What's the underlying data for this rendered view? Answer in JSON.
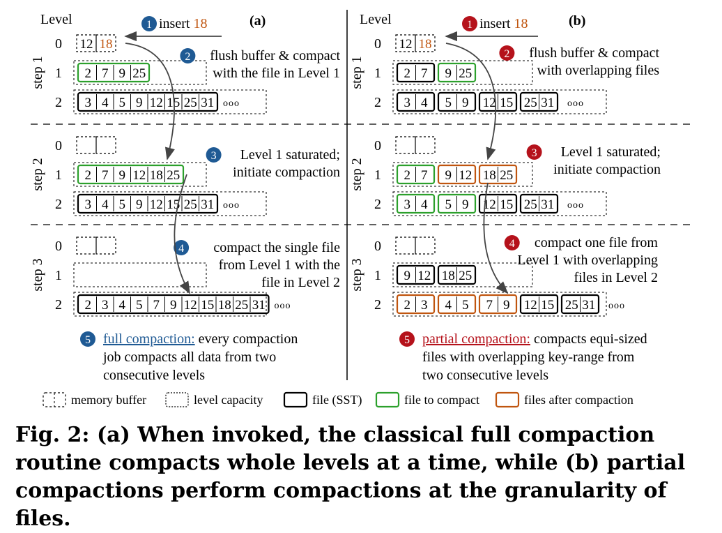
{
  "panels": {
    "a": {
      "label": "(a)",
      "level_heading": "Level",
      "steps": [
        {
          "label": "step 1",
          "rows": [
            {
              "level": "0",
              "buffer": [
                "12",
                "18"
              ],
              "buffer_colors": [
                "#000000",
                "#c0550f"
              ]
            },
            {
              "level": "1",
              "files": [
                {
                  "keys": [
                    "2",
                    "7",
                    "9",
                    "25"
                  ],
                  "kind": "compact"
                }
              ]
            },
            {
              "level": "2",
              "files": [
                {
                  "keys": [
                    "3",
                    "4",
                    "5",
                    "9",
                    "12",
                    "15",
                    "25",
                    "31"
                  ],
                  "kind": "sst"
                }
              ],
              "more": "ooo"
            }
          ]
        },
        {
          "label": "step 2",
          "rows": [
            {
              "level": "0",
              "buffer": [
                "",
                ""
              ],
              "buffer_colors": [
                "#000000",
                "#000000"
              ]
            },
            {
              "level": "1",
              "files": [
                {
                  "keys": [
                    "2",
                    "7",
                    "9",
                    "12",
                    "18",
                    "25"
                  ],
                  "kind": "compact"
                }
              ]
            },
            {
              "level": "2",
              "files": [
                {
                  "keys": [
                    "3",
                    "4",
                    "5",
                    "9",
                    "12",
                    "15",
                    "25",
                    "31"
                  ],
                  "kind": "sst"
                }
              ],
              "more": "ooo"
            }
          ]
        },
        {
          "label": "step 3",
          "rows": [
            {
              "level": "0",
              "buffer": [
                "",
                ""
              ],
              "buffer_colors": [
                "#000000",
                "#000000"
              ]
            },
            {
              "level": "1",
              "files": []
            },
            {
              "level": "2",
              "files": [
                {
                  "keys": [
                    "2",
                    "3",
                    "4",
                    "5",
                    "7",
                    "9",
                    "12",
                    "15",
                    "18",
                    "25",
                    "31"
                  ],
                  "kind": "sst"
                }
              ],
              "more": "ooo"
            }
          ]
        }
      ],
      "notes": [
        {
          "num": "1",
          "lines": [
            "insert 18"
          ]
        },
        {
          "num": "2",
          "lines": [
            "flush buffer & compact",
            "with the file in Level 1"
          ]
        },
        {
          "num": "3",
          "lines": [
            "Level 1 saturated;",
            "initiate compaction"
          ]
        },
        {
          "num": "4",
          "lines": [
            "compact the single file",
            "from Level 1 with the",
            "file in Level 2"
          ]
        }
      ],
      "summary": {
        "num": "5",
        "term": "full compaction:",
        "lines": [
          "every compaction",
          "job compacts all data from two",
          "consecutive levels"
        ]
      }
    },
    "b": {
      "label": "(b)",
      "level_heading": "Level",
      "steps": [
        {
          "label": "step 1",
          "rows": [
            {
              "level": "0",
              "buffer": [
                "12",
                "18"
              ],
              "buffer_colors": [
                "#000000",
                "#c0550f"
              ]
            },
            {
              "level": "1",
              "files": [
                {
                  "keys": [
                    "2",
                    "7"
                  ],
                  "kind": "sst"
                },
                {
                  "keys": [
                    "9",
                    "25"
                  ],
                  "kind": "compact"
                }
              ]
            },
            {
              "level": "2",
              "files": [
                {
                  "keys": [
                    "3",
                    "4"
                  ],
                  "kind": "sst"
                },
                {
                  "keys": [
                    "5",
                    "9"
                  ],
                  "kind": "sst"
                },
                {
                  "keys": [
                    "12",
                    "15"
                  ],
                  "kind": "sst"
                },
                {
                  "keys": [
                    "25",
                    "31"
                  ],
                  "kind": "sst"
                }
              ],
              "more": "ooo"
            }
          ]
        },
        {
          "label": "step 2",
          "rows": [
            {
              "level": "0",
              "buffer": [
                "",
                ""
              ],
              "buffer_colors": [
                "#000000",
                "#000000"
              ]
            },
            {
              "level": "1",
              "files": [
                {
                  "keys": [
                    "2",
                    "7"
                  ],
                  "kind": "compact"
                },
                {
                  "keys": [
                    "9",
                    "12"
                  ],
                  "kind": "after"
                },
                {
                  "keys": [
                    "18",
                    "25"
                  ],
                  "kind": "after"
                }
              ]
            },
            {
              "level": "2",
              "files": [
                {
                  "keys": [
                    "3",
                    "4"
                  ],
                  "kind": "compact"
                },
                {
                  "keys": [
                    "5",
                    "9"
                  ],
                  "kind": "compact"
                },
                {
                  "keys": [
                    "12",
                    "15"
                  ],
                  "kind": "sst"
                },
                {
                  "keys": [
                    "25",
                    "31"
                  ],
                  "kind": "sst"
                }
              ],
              "more": "ooo"
            }
          ]
        },
        {
          "label": "step 3",
          "rows": [
            {
              "level": "0",
              "buffer": [
                "",
                ""
              ],
              "buffer_colors": [
                "#000000",
                "#000000"
              ]
            },
            {
              "level": "1",
              "files": [
                {
                  "keys": [
                    "9",
                    "12"
                  ],
                  "kind": "sst"
                },
                {
                  "keys": [
                    "18",
                    "25"
                  ],
                  "kind": "sst"
                }
              ]
            },
            {
              "level": "2",
              "files": [
                {
                  "keys": [
                    "2",
                    "3"
                  ],
                  "kind": "after"
                },
                {
                  "keys": [
                    "4",
                    "5"
                  ],
                  "kind": "after"
                },
                {
                  "keys": [
                    "7",
                    "9"
                  ],
                  "kind": "after"
                },
                {
                  "keys": [
                    "12",
                    "15"
                  ],
                  "kind": "sst"
                },
                {
                  "keys": [
                    "25",
                    "31"
                  ],
                  "kind": "sst"
                }
              ],
              "more": "ooo"
            }
          ]
        }
      ],
      "notes": [
        {
          "num": "1",
          "lines": [
            "insert 18"
          ]
        },
        {
          "num": "2",
          "lines": [
            "flush buffer & compact",
            "with overlapping files"
          ]
        },
        {
          "num": "3",
          "lines": [
            "Level 1 saturated;",
            "initiate compaction"
          ]
        },
        {
          "num": "4",
          "lines": [
            "compact one file from",
            "Level 1 with overlapping",
            "files in Level 2"
          ]
        }
      ],
      "summary": {
        "num": "5",
        "term": "partial compaction:",
        "lines": [
          "compacts equi-sized",
          "files with overlapping key-range from",
          "two consecutive levels"
        ]
      }
    }
  },
  "legend": [
    {
      "label": "memory buffer",
      "style": "buffer"
    },
    {
      "label": "level capacity",
      "style": "capacity"
    },
    {
      "label": "file (SST)",
      "style": "sst"
    },
    {
      "label": "file to compact",
      "style": "compact"
    },
    {
      "label": "files after compaction",
      "style": "after"
    }
  ],
  "colors": {
    "blue_badge": "#1f5a94",
    "red_badge": "#b5121b",
    "compact": "#2ca02c",
    "after": "#c0550f",
    "sst": "#000000",
    "full_term": "#1f5a94",
    "partial_term": "#b5121b"
  },
  "caption": "Fig. 2: (a) When invoked, the classical full compaction routine compacts whole levels at a time, while (b) partial compactions perform compactions at the granularity of files."
}
